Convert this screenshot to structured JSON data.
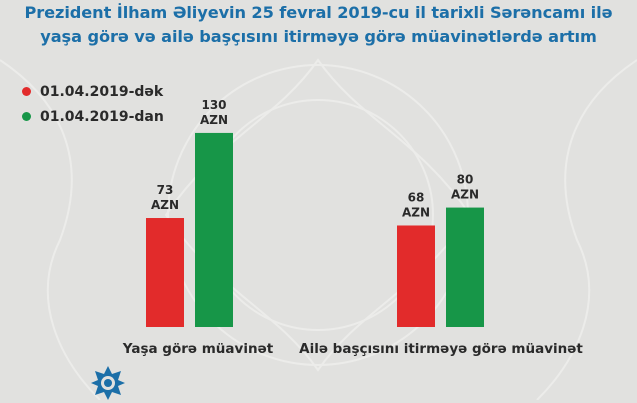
{
  "header": {
    "title_line1": "Prezident İlham Əliyevin 25 fevral 2019-cu il tarixli Sərəncamı ilə",
    "title_line2": "yaşa görə və ailə başçısını itirməyə görə müavinətlərdə artım"
  },
  "colors": {
    "before": "#e22b2b",
    "after": "#179648",
    "title": "#1c6fa8",
    "background": "#e1e1df"
  },
  "chart_data": {
    "type": "bar",
    "categories": [
      "Yaşa görə müavinət",
      "Ailə başçısını itirməyə görə müavinət"
    ],
    "series": [
      {
        "name": "01.04.2019-dək",
        "values": [
          73,
          68
        ],
        "labels": [
          "73",
          "68"
        ],
        "unit": "AZN"
      },
      {
        "name": "01.04.2019-dan",
        "values": [
          130,
          80
        ],
        "labels": [
          "130",
          "80"
        ],
        "unit": "AZN"
      }
    ],
    "ylim": [
      0,
      140
    ],
    "grid": false,
    "legend_position": "top-left"
  },
  "logo": {
    "icon": "star-emblem-icon"
  }
}
